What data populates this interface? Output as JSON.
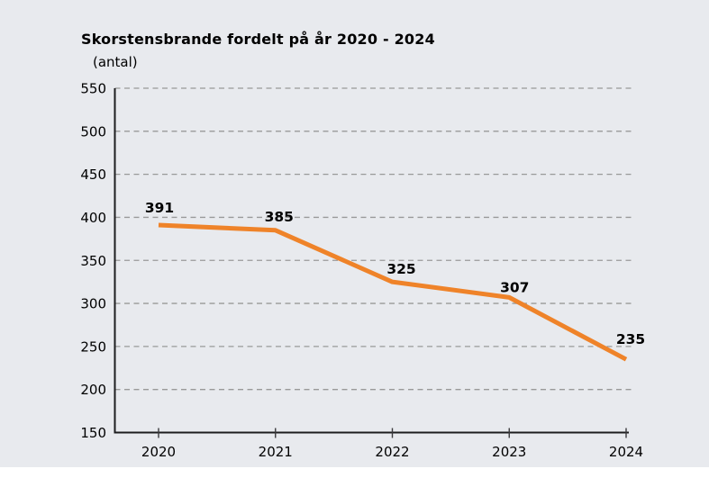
{
  "page": {
    "background_color": "#e8eaee",
    "margin_color": "#ffffff"
  },
  "chart_data": {
    "type": "line",
    "title": "Skorstensbrande fordelt på år 2020 - 2024",
    "subtitle": "(antal)",
    "x": [
      "2020",
      "2021",
      "2022",
      "2023",
      "2024"
    ],
    "series": [
      {
        "name": "Skorstensbrande",
        "values": [
          391,
          385,
          325,
          307,
          235
        ]
      }
    ],
    "data_labels": [
      "391",
      "385",
      "325",
      "307",
      "235"
    ],
    "xlabel": "",
    "ylabel": "antal",
    "ylim": [
      150,
      550
    ],
    "yticks": [
      150,
      200,
      250,
      300,
      350,
      400,
      450,
      500,
      550
    ],
    "grid": "horizontal-dashed",
    "legend_position": "none",
    "line_color": "#EF8329",
    "axis_color": "#1d1d1f",
    "grid_color": "#999999",
    "text_color": "#000000"
  }
}
